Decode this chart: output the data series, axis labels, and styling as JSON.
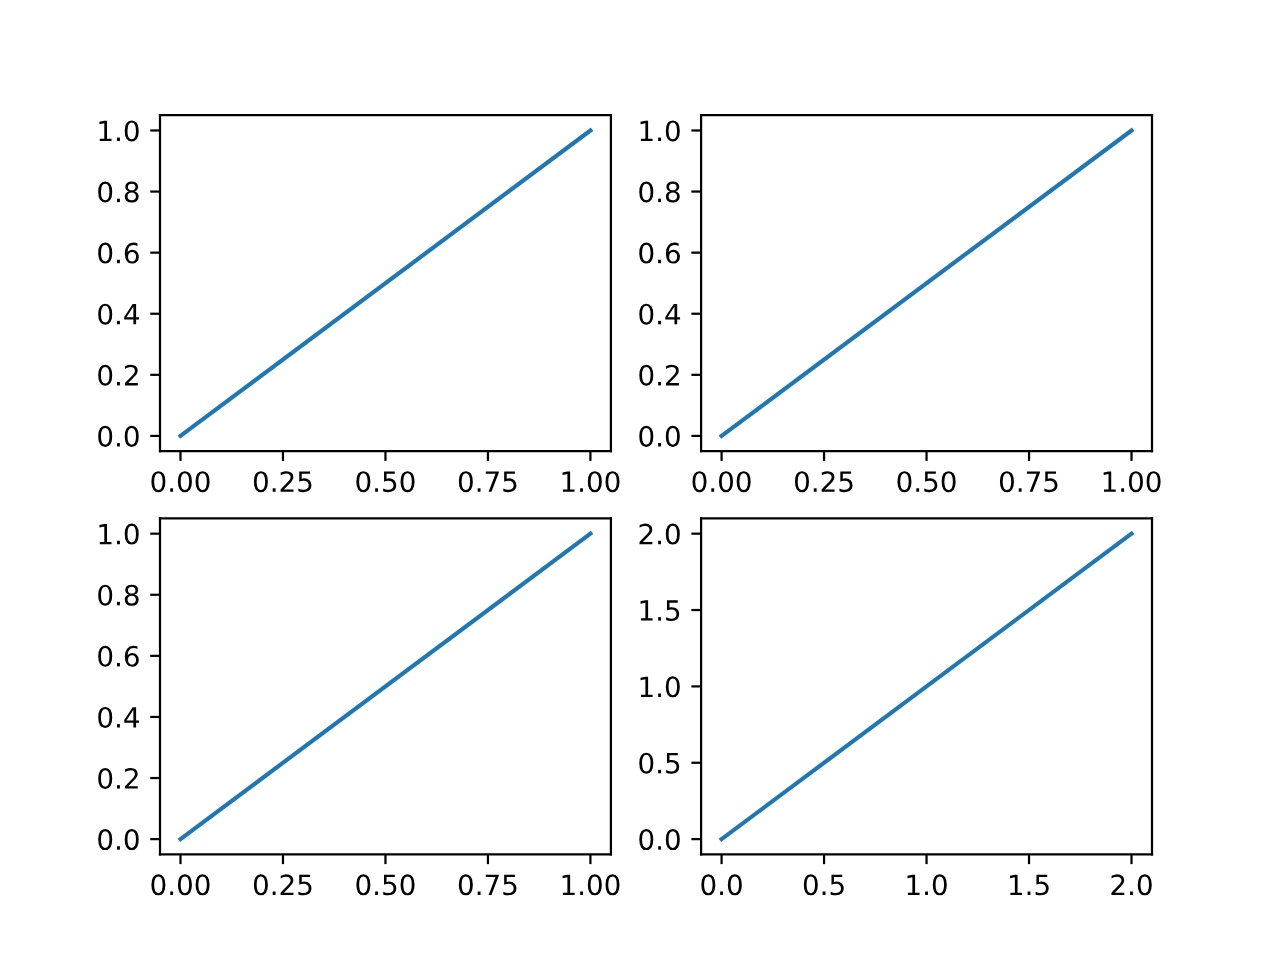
{
  "chart_data": [
    {
      "type": "line",
      "x": [
        0,
        1
      ],
      "series": [
        {
          "color": "#1f77b4",
          "values": [
            0,
            1
          ]
        }
      ],
      "xlim": [
        -0.05,
        1.05
      ],
      "ylim": [
        -0.05,
        1.05
      ],
      "xticks": [
        {
          "value": 0,
          "label": "0.00"
        },
        0.25,
        {
          "value": 0.5,
          "label": "0.50"
        },
        0.75,
        {
          "value": 1,
          "label": "1.00"
        }
      ],
      "yticks": [
        {
          "value": 0,
          "label": "0.0"
        },
        0.2,
        0.4,
        0.6,
        0.8,
        {
          "value": 1,
          "label": "1.0"
        }
      ],
      "grid": false,
      "legend": false
    },
    {
      "type": "line",
      "x": [
        0,
        1
      ],
      "series": [
        {
          "color": "#1f77b4",
          "values": [
            0,
            1
          ]
        }
      ],
      "xlim": [
        -0.05,
        1.05
      ],
      "ylim": [
        -0.05,
        1.05
      ],
      "xticks": [
        {
          "value": 0,
          "label": "0.00"
        },
        0.25,
        {
          "value": 0.5,
          "label": "0.50"
        },
        0.75,
        {
          "value": 1,
          "label": "1.00"
        }
      ],
      "yticks": [
        {
          "value": 0,
          "label": "0.0"
        },
        0.2,
        0.4,
        0.6,
        0.8,
        {
          "value": 1,
          "label": "1.0"
        }
      ],
      "grid": false,
      "legend": false
    },
    {
      "type": "line",
      "x": [
        0,
        1
      ],
      "series": [
        {
          "color": "#1f77b4",
          "values": [
            0,
            1
          ]
        }
      ],
      "xlim": [
        -0.05,
        1.05
      ],
      "ylim": [
        -0.05,
        1.05
      ],
      "xticks": [
        {
          "value": 0,
          "label": "0.00"
        },
        0.25,
        {
          "value": 0.5,
          "label": "0.50"
        },
        0.75,
        {
          "value": 1,
          "label": "1.00"
        }
      ],
      "yticks": [
        {
          "value": 0,
          "label": "0.0"
        },
        0.2,
        0.4,
        0.6,
        0.8,
        {
          "value": 1,
          "label": "1.0"
        }
      ],
      "grid": false,
      "legend": false
    },
    {
      "type": "line",
      "x": [
        0,
        2
      ],
      "series": [
        {
          "color": "#1f77b4",
          "values": [
            0,
            2
          ]
        }
      ],
      "xlim": [
        -0.1,
        2.1
      ],
      "ylim": [
        -0.1,
        2.1
      ],
      "xticks": [
        {
          "value": 0,
          "label": "0.0"
        },
        0.5,
        {
          "value": 1,
          "label": "1.0"
        },
        1.5,
        {
          "value": 2,
          "label": "2.0"
        }
      ],
      "yticks": [
        {
          "value": 0,
          "label": "0.0"
        },
        0.5,
        {
          "value": 1,
          "label": "1.0"
        },
        1.5,
        {
          "value": 2,
          "label": "2.0"
        }
      ],
      "grid": false,
      "legend": false
    }
  ]
}
